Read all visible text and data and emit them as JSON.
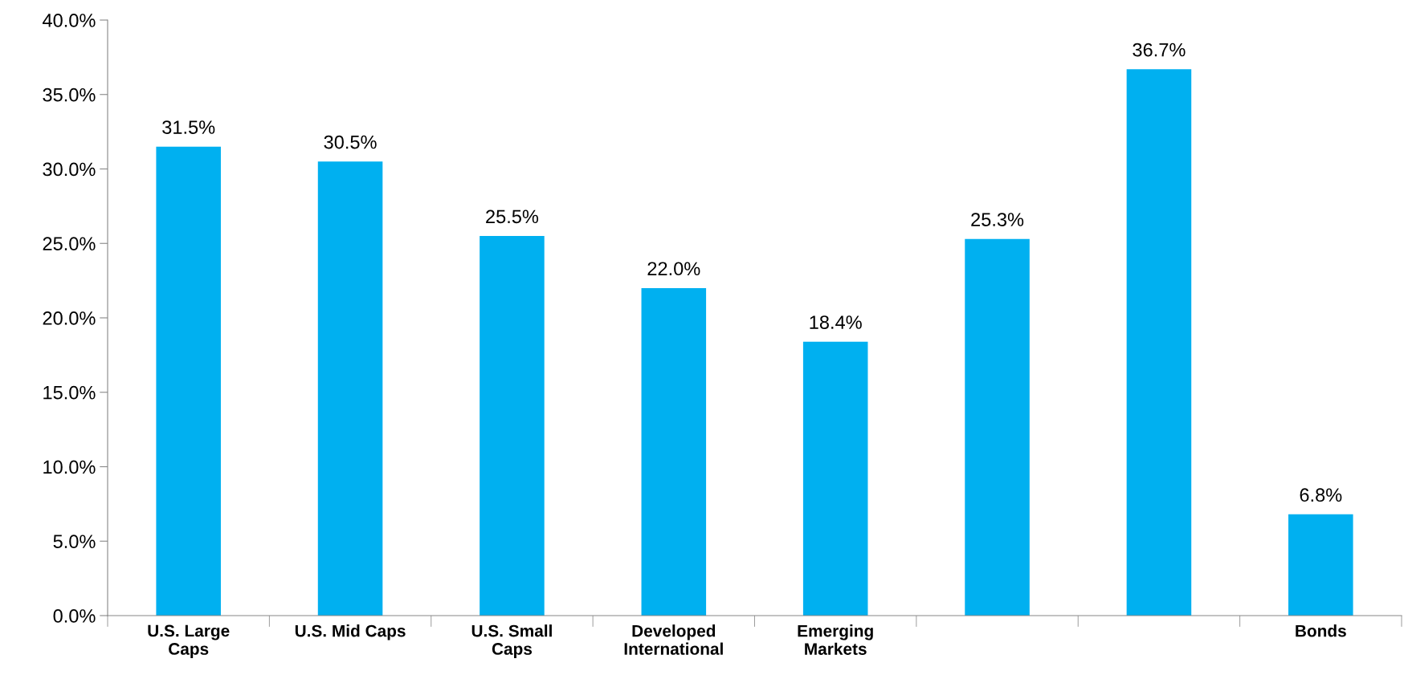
{
  "chart_data": {
    "type": "bar",
    "categories": [
      "U.S. Large\nCaps",
      "U.S. Mid Caps",
      "U.S. Small\nCaps",
      "Developed\nInternational",
      "Emerging\nMarkets",
      null,
      null,
      "Bonds"
    ],
    "values": [
      31.5,
      30.5,
      25.5,
      22.0,
      18.4,
      25.3,
      36.7,
      6.8
    ],
    "value_labels": [
      "31.5%",
      "30.5%",
      "25.5%",
      "22.0%",
      "18.4%",
      "25.3%",
      "36.7%",
      "6.8%"
    ],
    "color": "#00b0f0",
    "ylim": [
      0,
      40
    ],
    "yticks": [
      {
        "value": 0,
        "label": "0.0%"
      },
      {
        "value": 5,
        "label": "5.0%"
      },
      {
        "value": 10,
        "label": "10.0%"
      },
      {
        "value": 15,
        "label": "15.0%"
      },
      {
        "value": 20,
        "label": "20.0%"
      },
      {
        "value": 25,
        "label": "25.0%"
      },
      {
        "value": 30,
        "label": "30.0%"
      },
      {
        "value": 35,
        "label": "35.0%"
      },
      {
        "value": 40,
        "label": "40.0%"
      }
    ],
    "grid": false,
    "legend": false
  }
}
